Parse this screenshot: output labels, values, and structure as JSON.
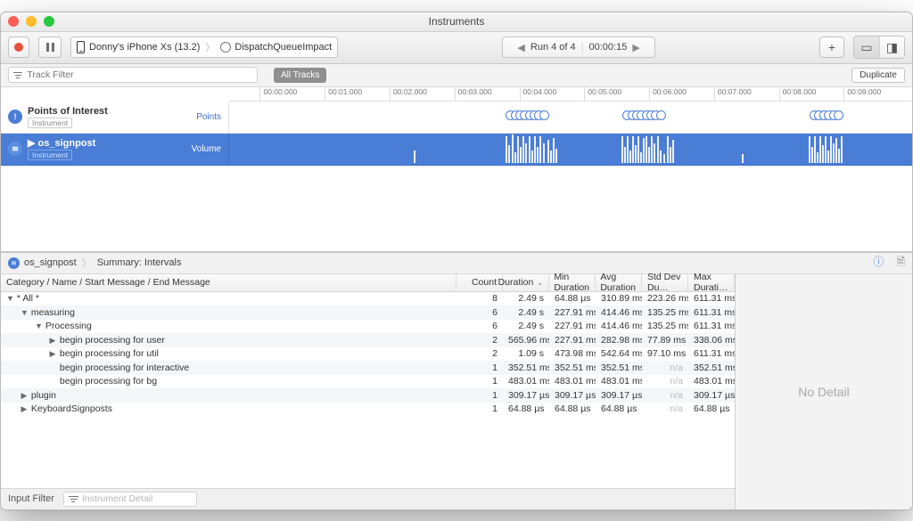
{
  "colors": {
    "traffic_red": "#ff5f57",
    "traffic_yellow": "#febc2e",
    "traffic_green": "#28c840",
    "accent": "#4a7dd6"
  },
  "window_title": "Instruments",
  "toolbar": {
    "device": "Donny's iPhone Xs (13.2)",
    "target": "DispatchQueueImpact",
    "run_label": "Run 4 of 4",
    "run_time": "00:00:15",
    "plus": "+"
  },
  "filterbar": {
    "track_placeholder": "Track Filter",
    "all_tracks": "All Tracks",
    "duplicate": "Duplicate"
  },
  "ruler": {
    "ticks": [
      {
        "pos": 4.5,
        "label": "00:00.000"
      },
      {
        "pos": 14.0,
        "label": "00:01.000"
      },
      {
        "pos": 23.5,
        "label": "00:02.000"
      },
      {
        "pos": 33.0,
        "label": "00:03.000"
      },
      {
        "pos": 42.5,
        "label": "00:04.000"
      },
      {
        "pos": 52.0,
        "label": "00:05.000"
      },
      {
        "pos": 61.5,
        "label": "00:06.000"
      },
      {
        "pos": 71.0,
        "label": "00:07.000"
      },
      {
        "pos": 80.5,
        "label": "00:08.000"
      },
      {
        "pos": 90.0,
        "label": "00:09.000"
      }
    ]
  },
  "tracks": [
    {
      "name": "Points of Interest",
      "badge": "Instrument",
      "right": "Points",
      "icon_bg": "#4a7dd6",
      "icon_txt": "!",
      "selected": false,
      "poi": [
        40.5,
        41.2,
        41.9,
        42.6,
        43.3,
        44.0,
        44.7,
        45.4,
        57.6,
        58.3,
        59.0,
        59.7,
        60.4,
        61.1,
        61.8,
        62.5,
        85.0,
        85.7,
        86.4,
        87.1,
        87.8,
        88.5
      ]
    },
    {
      "name": "os_signpost",
      "badge": "Instrument",
      "right": "Volume",
      "icon_bg": "#5b8fe0",
      "icon_txt": "≋",
      "selected": true,
      "bars": [
        [
          27.0,
          14
        ],
        [
          40.5,
          30
        ],
        [
          40.9,
          20
        ],
        [
          41.4,
          32
        ],
        [
          41.8,
          12
        ],
        [
          42.2,
          30
        ],
        [
          42.6,
          18
        ],
        [
          43.0,
          30
        ],
        [
          43.4,
          22
        ],
        [
          43.8,
          30
        ],
        [
          44.2,
          14
        ],
        [
          44.6,
          30
        ],
        [
          45.0,
          18
        ],
        [
          45.4,
          30
        ],
        [
          45.9,
          22
        ],
        [
          46.6,
          26
        ],
        [
          47.0,
          14
        ],
        [
          47.4,
          28
        ],
        [
          47.8,
          16
        ],
        [
          57.4,
          30
        ],
        [
          57.8,
          18
        ],
        [
          58.2,
          30
        ],
        [
          58.6,
          14
        ],
        [
          59.0,
          30
        ],
        [
          59.4,
          20
        ],
        [
          59.8,
          30
        ],
        [
          60.2,
          12
        ],
        [
          60.6,
          28
        ],
        [
          61.0,
          30
        ],
        [
          61.4,
          18
        ],
        [
          61.8,
          30
        ],
        [
          62.2,
          22
        ],
        [
          62.6,
          30
        ],
        [
          63.0,
          14
        ],
        [
          63.6,
          10
        ],
        [
          64.1,
          30
        ],
        [
          64.5,
          18
        ],
        [
          64.9,
          26
        ],
        [
          75.0,
          10
        ],
        [
          84.8,
          30
        ],
        [
          85.2,
          18
        ],
        [
          85.6,
          30
        ],
        [
          86.0,
          12
        ],
        [
          86.4,
          30
        ],
        [
          86.8,
          20
        ],
        [
          87.2,
          30
        ],
        [
          87.6,
          14
        ],
        [
          88.0,
          30
        ],
        [
          88.4,
          22
        ],
        [
          88.8,
          28
        ],
        [
          89.2,
          16
        ],
        [
          89.6,
          30
        ]
      ]
    }
  ],
  "detail": {
    "crumb1": "os_signpost",
    "crumb2": "Summary: Intervals",
    "no_detail": "No Detail",
    "input_filter_label": "Input Filter",
    "instrument_detail_placeholder": "Instrument Detail",
    "columns": [
      {
        "key": "cat",
        "label": "Category / Name / Start Message / End Message",
        "cls": "col-cat"
      },
      {
        "key": "count",
        "label": "Count",
        "cls": "col-n r"
      },
      {
        "key": "dur",
        "label": "Duration",
        "cls": "col-n r",
        "sort": true
      },
      {
        "key": "min",
        "label": "Min Duration",
        "cls": "col-n r"
      },
      {
        "key": "avg",
        "label": "Avg Duration",
        "cls": "col-n r"
      },
      {
        "key": "std",
        "label": "Std Dev Du…",
        "cls": "col-n r"
      },
      {
        "key": "max",
        "label": "Max Durati…",
        "cls": "col-n r"
      }
    ],
    "rows": [
      {
        "indent": 0,
        "disc": "▼",
        "label": "* All *",
        "count": "8",
        "dur": "2.49 s",
        "min": "64.88 µs",
        "avg": "310.89 ms",
        "std": "223.26 ms",
        "max": "611.31 ms"
      },
      {
        "indent": 1,
        "disc": "▼",
        "label": "measuring",
        "count": "6",
        "dur": "2.49 s",
        "min": "227.91 ms",
        "avg": "414.46 ms",
        "std": "135.25 ms",
        "max": "611.31 ms"
      },
      {
        "indent": 2,
        "disc": "▼",
        "label": "Processing",
        "count": "6",
        "dur": "2.49 s",
        "min": "227.91 ms",
        "avg": "414.46 ms",
        "std": "135.25 ms",
        "max": "611.31 ms"
      },
      {
        "indent": 3,
        "disc": "▶",
        "label": "begin processing for user",
        "count": "2",
        "dur": "565.96 ms",
        "min": "227.91 ms",
        "avg": "282.98 ms",
        "std": "77.89 ms",
        "max": "338.06 ms"
      },
      {
        "indent": 3,
        "disc": "▶",
        "label": "begin processing for util",
        "count": "2",
        "dur": "1.09 s",
        "min": "473.98 ms",
        "avg": "542.64 ms",
        "std": "97.10 ms",
        "max": "611.31 ms"
      },
      {
        "indent": 3,
        "disc": "",
        "label": "begin processing for interactive",
        "count": "1",
        "dur": "352.51 ms",
        "min": "352.51 ms",
        "avg": "352.51 ms",
        "std": "n/a",
        "max": "352.51 ms"
      },
      {
        "indent": 3,
        "disc": "",
        "label": "begin processing for bg",
        "count": "1",
        "dur": "483.01 ms",
        "min": "483.01 ms",
        "avg": "483.01 ms",
        "std": "n/a",
        "max": "483.01 ms"
      },
      {
        "indent": 1,
        "disc": "▶",
        "label": "plugin",
        "count": "1",
        "dur": "309.17 µs",
        "min": "309.17 µs",
        "avg": "309.17 µs",
        "std": "n/a",
        "max": "309.17 µs"
      },
      {
        "indent": 1,
        "disc": "▶",
        "label": "KeyboardSignposts",
        "count": "1",
        "dur": "64.88 µs",
        "min": "64.88 µs",
        "avg": "64.88 µs",
        "std": "n/a",
        "max": "64.88 µs"
      }
    ]
  }
}
